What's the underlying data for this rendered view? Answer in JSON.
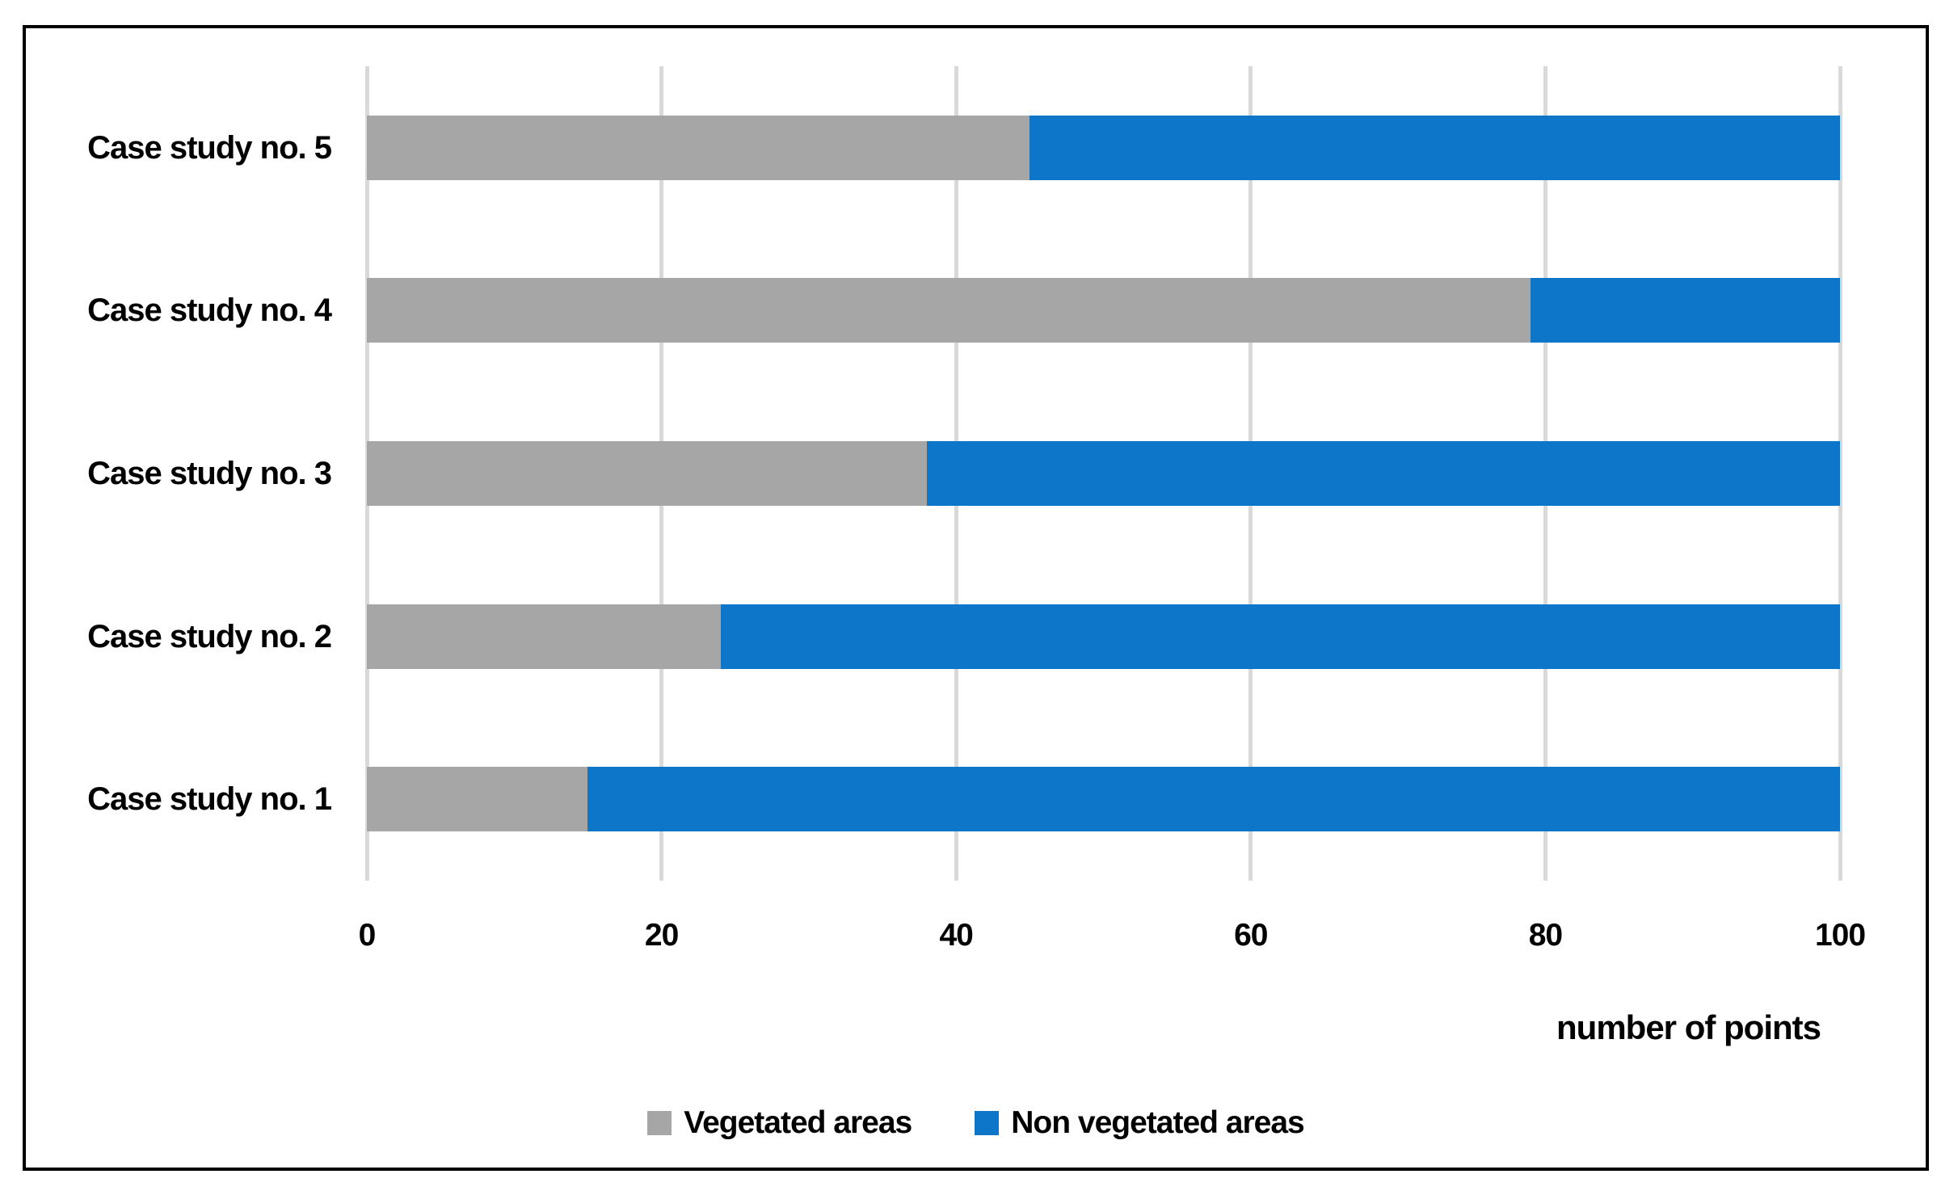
{
  "chart_data": {
    "type": "bar",
    "orientation": "horizontal",
    "stacked": true,
    "categories": [
      "Case study no. 1",
      "Case study no. 2",
      "Case study no. 3",
      "Case study no. 4",
      "Case study no. 5"
    ],
    "display_order_top_to_bottom": [
      "Case study no. 5",
      "Case study no. 4",
      "Case study no. 3",
      "Case study no. 2",
      "Case study no. 1"
    ],
    "series": [
      {
        "name": "Vegetated areas",
        "color": "#a6a6a6",
        "values": [
          15,
          24,
          38,
          79,
          45
        ]
      },
      {
        "name": "Non vegetated areas",
        "color": "#0d76c8",
        "values": [
          85,
          76,
          62,
          21,
          55
        ]
      }
    ],
    "title": "",
    "xlabel": "number of points",
    "ylabel": "",
    "xlim": [
      0,
      100
    ],
    "xticks": [
      0,
      20,
      40,
      60,
      80,
      100
    ],
    "grid": "vertical",
    "gridline_color": "#d9d9d9",
    "legend_position": "bottom",
    "frame_border_color": "#000000"
  }
}
